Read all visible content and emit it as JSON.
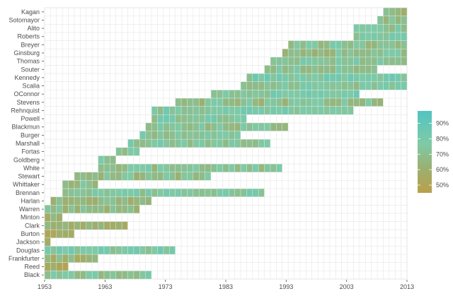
{
  "chart_data": {
    "type": "heatmap",
    "title": "",
    "xlabel": "",
    "ylabel": "",
    "x_range": [
      1953,
      2013
    ],
    "x_ticks": [
      "1953",
      "1963",
      "1973",
      "1983",
      "1993",
      "2003",
      "2013"
    ],
    "value_unit": "percent",
    "color_scale": {
      "min": 45,
      "max": 98,
      "stops": [
        {
          "value": 45,
          "color": "#b9a04a"
        },
        {
          "value": 60,
          "color": "#9bb070"
        },
        {
          "value": 75,
          "color": "#7fcaa6"
        },
        {
          "value": 98,
          "color": "#52c4c1"
        }
      ]
    },
    "legend": {
      "position": "right",
      "labels": [
        "90%",
        "80%",
        "70%",
        "60%",
        "50%"
      ],
      "values": [
        90,
        80,
        70,
        60,
        50
      ]
    },
    "grid": true,
    "justices": [
      {
        "name": "Kagan",
        "start": 2010,
        "end": 2013,
        "avg": 64
      },
      {
        "name": "Sotomayor",
        "start": 2009,
        "end": 2013,
        "avg": 66
      },
      {
        "name": "Alito",
        "start": 2005,
        "end": 2013,
        "avg": 72
      },
      {
        "name": "Roberts",
        "start": 2005,
        "end": 2013,
        "avg": 74
      },
      {
        "name": "Breyer",
        "start": 1994,
        "end": 2013,
        "avg": 70
      },
      {
        "name": "Ginsburg",
        "start": 1993,
        "end": 2013,
        "avg": 68
      },
      {
        "name": "Thomas",
        "start": 1991,
        "end": 2013,
        "avg": 73
      },
      {
        "name": "Souter",
        "start": 1990,
        "end": 2008,
        "avg": 72
      },
      {
        "name": "Kennedy",
        "start": 1987,
        "end": 2013,
        "avg": 77
      },
      {
        "name": "Scalia",
        "start": 1986,
        "end": 2013,
        "avg": 73
      },
      {
        "name": "OConnor",
        "start": 1981,
        "end": 2005,
        "avg": 76
      },
      {
        "name": "Stevens",
        "start": 1975,
        "end": 2009,
        "avg": 68
      },
      {
        "name": "Rehnquist",
        "start": 1971,
        "end": 2004,
        "avg": 75
      },
      {
        "name": "Powell",
        "start": 1971,
        "end": 1986,
        "avg": 74
      },
      {
        "name": "Blackmun",
        "start": 1970,
        "end": 1993,
        "avg": 70
      },
      {
        "name": "Burger",
        "start": 1969,
        "end": 1985,
        "avg": 72
      },
      {
        "name": "Marshall",
        "start": 1967,
        "end": 1990,
        "avg": 73
      },
      {
        "name": "Fortas",
        "start": 1965,
        "end": 1968,
        "avg": 72
      },
      {
        "name": "Goldberg",
        "start": 1962,
        "end": 1964,
        "avg": 74
      },
      {
        "name": "White",
        "start": 1962,
        "end": 1992,
        "avg": 70
      },
      {
        "name": "Stewart",
        "start": 1958,
        "end": 1980,
        "avg": 68
      },
      {
        "name": "Whittaker",
        "start": 1956,
        "end": 1961,
        "avg": 66
      },
      {
        "name": "Brennan",
        "start": 1956,
        "end": 1989,
        "avg": 74
      },
      {
        "name": "Harlan",
        "start": 1954,
        "end": 1970,
        "avg": 63
      },
      {
        "name": "Warren",
        "start": 1953,
        "end": 1968,
        "avg": 66
      },
      {
        "name": "Minton",
        "start": 1953,
        "end": 1955,
        "avg": 58
      },
      {
        "name": "Clark",
        "start": 1953,
        "end": 1966,
        "avg": 62
      },
      {
        "name": "Burton",
        "start": 1953,
        "end": 1957,
        "avg": 58
      },
      {
        "name": "Jackson",
        "start": 1953,
        "end": 1953,
        "avg": 55
      },
      {
        "name": "Douglas",
        "start": 1953,
        "end": 1974,
        "avg": 75
      },
      {
        "name": "Frankfurter",
        "start": 1953,
        "end": 1961,
        "avg": 62
      },
      {
        "name": "Reed",
        "start": 1953,
        "end": 1956,
        "avg": 55
      },
      {
        "name": "Black",
        "start": 1953,
        "end": 1970,
        "avg": 72
      }
    ]
  }
}
